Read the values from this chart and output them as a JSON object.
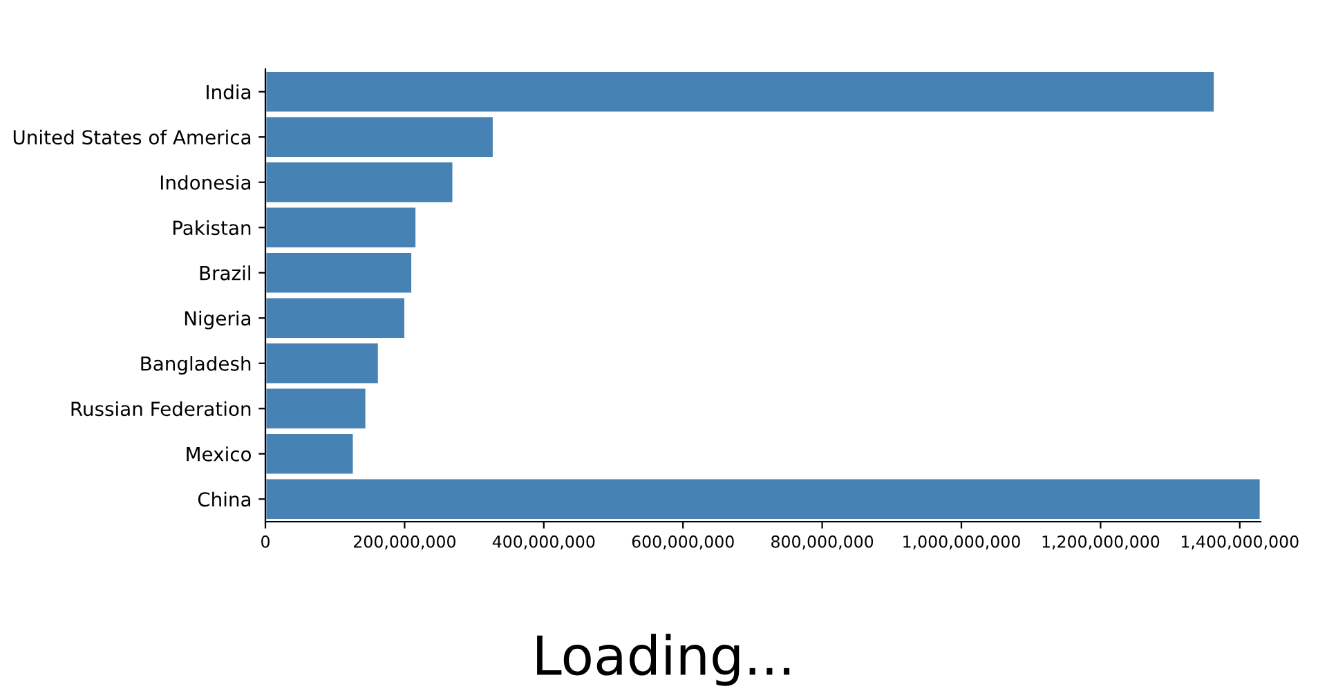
{
  "chart_data": {
    "type": "bar",
    "orientation": "horizontal",
    "categories": [
      "India",
      "United States of America",
      "Indonesia",
      "Pakistan",
      "Brazil",
      "Nigeria",
      "Bangladesh",
      "Russian Federation",
      "Mexico",
      "China"
    ],
    "values": [
      1364000000,
      328000000,
      270000000,
      217000000,
      211000000,
      201000000,
      163000000,
      145000000,
      127000000,
      1430000000
    ],
    "color": "#4682b4",
    "xlim": [
      0,
      1430000000
    ],
    "xticks": [
      0,
      {
        "value": 200000000,
        "label": "200,000,000"
      },
      {
        "value": 400000000,
        "label": "400,000,000"
      },
      {
        "value": 600000000,
        "label": "600,000,000"
      },
      {
        "value": 800000000,
        "label": "800,000,000"
      },
      {
        "value": 1000000000,
        "label": "1,000,000,000"
      },
      {
        "value": 1200000000,
        "label": "1,200,000,000"
      },
      {
        "value": 1400000000,
        "label": "1,400,000,000"
      }
    ],
    "grid": false,
    "legend": false,
    "annotations": [
      "Loading..."
    ]
  }
}
